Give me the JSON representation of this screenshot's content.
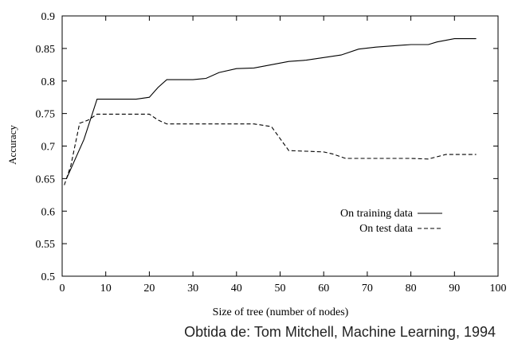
{
  "chart_data": {
    "type": "line",
    "xlabel": "Size of tree (number of nodes)",
    "ylabel": "Accuracy",
    "xlim": [
      0,
      100
    ],
    "ylim": [
      0.5,
      0.9
    ],
    "x_ticks": [
      0,
      10,
      20,
      30,
      40,
      50,
      60,
      70,
      80,
      90,
      100
    ],
    "y_ticks": [
      0.5,
      0.55,
      0.6,
      0.65,
      0.7,
      0.75,
      0.8,
      0.85,
      0.9
    ],
    "grid": false,
    "legend_position": "lower-right",
    "series": [
      {
        "name": "On training data",
        "style": "solid",
        "color": "#000000",
        "x": [
          1,
          3,
          5,
          8,
          10,
          12,
          14,
          17,
          20,
          22,
          24,
          26,
          28,
          30,
          33,
          36,
          40,
          44,
          48,
          52,
          56,
          60,
          64,
          68,
          72,
          76,
          80,
          84,
          86,
          90,
          95
        ],
        "y": [
          0.65,
          0.68,
          0.71,
          0.772,
          0.772,
          0.772,
          0.772,
          0.772,
          0.775,
          0.79,
          0.802,
          0.802,
          0.802,
          0.802,
          0.804,
          0.813,
          0.819,
          0.82,
          0.825,
          0.83,
          0.832,
          0.836,
          0.84,
          0.849,
          0.852,
          0.854,
          0.856,
          0.856,
          0.86,
          0.865,
          0.865
        ]
      },
      {
        "name": "On test data",
        "style": "dashed",
        "color": "#000000",
        "x": [
          0.5,
          2,
          4,
          6,
          8,
          12,
          16,
          20,
          22,
          24,
          30,
          40,
          44,
          48,
          52,
          56,
          60,
          62,
          65,
          68,
          72,
          76,
          80,
          84,
          88,
          90,
          95
        ],
        "y": [
          0.64,
          0.67,
          0.735,
          0.74,
          0.749,
          0.749,
          0.749,
          0.749,
          0.74,
          0.734,
          0.734,
          0.734,
          0.734,
          0.73,
          0.693,
          0.692,
          0.691,
          0.688,
          0.681,
          0.681,
          0.681,
          0.681,
          0.681,
          0.68,
          0.687,
          0.687,
          0.687
        ]
      }
    ]
  },
  "caption": "Obtida de: Tom Mitchell, Machine Learning, 1994"
}
